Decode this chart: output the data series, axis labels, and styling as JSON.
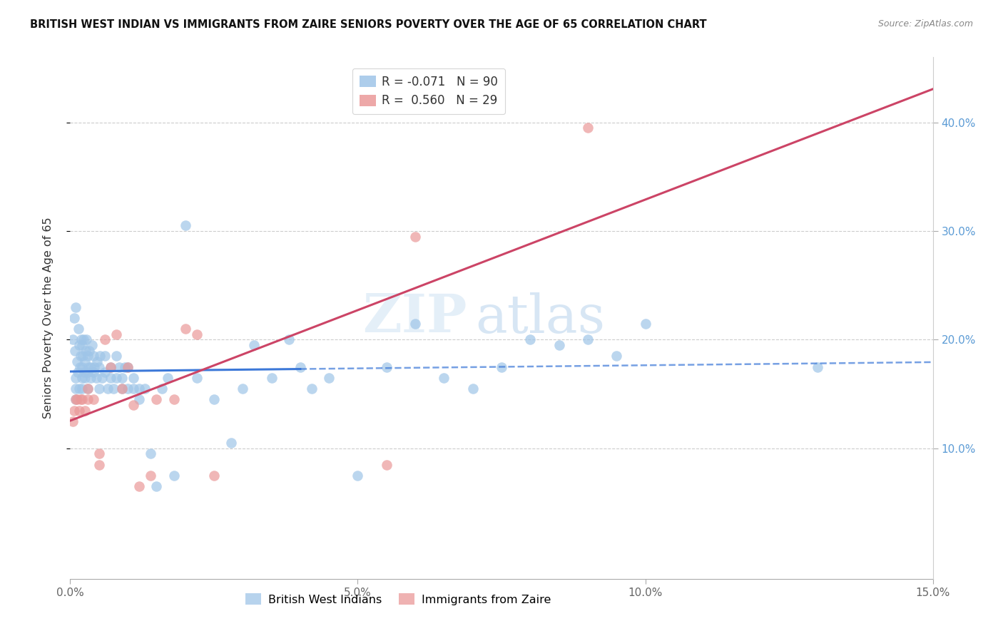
{
  "title": "BRITISH WEST INDIAN VS IMMIGRANTS FROM ZAIRE SENIORS POVERTY OVER THE AGE OF 65 CORRELATION CHART",
  "source": "Source: ZipAtlas.com",
  "ylabel": "Seniors Poverty Over the Age of 65",
  "xlim": [
    0.0,
    0.15
  ],
  "ylim": [
    -0.02,
    0.46
  ],
  "yticks": [
    0.1,
    0.2,
    0.3,
    0.4
  ],
  "xticks": [
    0.0,
    0.05,
    0.1,
    0.15
  ],
  "legend_labels": [
    "British West Indians",
    "Immigrants from Zaire"
  ],
  "series1_label": "R = -0.071",
  "series1_n": "N = 90",
  "series2_label": "R =  0.560",
  "series2_n": "N = 29",
  "blue_color": "#9fc5e8",
  "pink_color": "#ea9999",
  "blue_line_color": "#3c78d8",
  "pink_line_color": "#cc4466",
  "watermark_zip": "ZIP",
  "watermark_atlas": "atlas",
  "blue_x": [
    0.0005,
    0.0007,
    0.0008,
    0.0009,
    0.001,
    0.001,
    0.001,
    0.0012,
    0.0013,
    0.0014,
    0.0015,
    0.0016,
    0.0017,
    0.0018,
    0.0019,
    0.002,
    0.002,
    0.002,
    0.002,
    0.0022,
    0.0023,
    0.0024,
    0.0025,
    0.0026,
    0.0027,
    0.0028,
    0.003,
    0.003,
    0.003,
    0.0032,
    0.0033,
    0.0035,
    0.0036,
    0.0038,
    0.004,
    0.004,
    0.0042,
    0.0045,
    0.0047,
    0.005,
    0.005,
    0.0052,
    0.0055,
    0.006,
    0.006,
    0.0065,
    0.007,
    0.007,
    0.0075,
    0.008,
    0.008,
    0.0085,
    0.009,
    0.009,
    0.0095,
    0.01,
    0.01,
    0.011,
    0.011,
    0.012,
    0.012,
    0.013,
    0.014,
    0.015,
    0.016,
    0.017,
    0.018,
    0.02,
    0.022,
    0.025,
    0.028,
    0.03,
    0.032,
    0.035,
    0.038,
    0.04,
    0.042,
    0.045,
    0.05,
    0.055,
    0.06,
    0.065,
    0.07,
    0.075,
    0.08,
    0.085,
    0.09,
    0.095,
    0.1,
    0.13
  ],
  "blue_y": [
    0.2,
    0.22,
    0.19,
    0.23,
    0.145,
    0.155,
    0.165,
    0.18,
    0.17,
    0.21,
    0.155,
    0.195,
    0.175,
    0.185,
    0.2,
    0.155,
    0.165,
    0.175,
    0.195,
    0.185,
    0.2,
    0.17,
    0.165,
    0.18,
    0.19,
    0.2,
    0.155,
    0.17,
    0.185,
    0.175,
    0.19,
    0.165,
    0.175,
    0.195,
    0.17,
    0.185,
    0.175,
    0.165,
    0.18,
    0.155,
    0.175,
    0.185,
    0.165,
    0.17,
    0.185,
    0.155,
    0.165,
    0.175,
    0.155,
    0.165,
    0.185,
    0.175,
    0.155,
    0.165,
    0.175,
    0.155,
    0.175,
    0.155,
    0.165,
    0.155,
    0.145,
    0.155,
    0.095,
    0.065,
    0.155,
    0.165,
    0.075,
    0.305,
    0.165,
    0.145,
    0.105,
    0.155,
    0.195,
    0.165,
    0.2,
    0.175,
    0.155,
    0.165,
    0.075,
    0.175,
    0.215,
    0.165,
    0.155,
    0.175,
    0.2,
    0.195,
    0.2,
    0.185,
    0.215,
    0.175
  ],
  "pink_x": [
    0.0005,
    0.0007,
    0.001,
    0.0012,
    0.0015,
    0.0018,
    0.002,
    0.0025,
    0.003,
    0.003,
    0.004,
    0.005,
    0.005,
    0.006,
    0.007,
    0.008,
    0.009,
    0.01,
    0.011,
    0.012,
    0.014,
    0.015,
    0.018,
    0.02,
    0.022,
    0.025,
    0.055,
    0.06,
    0.09
  ],
  "pink_y": [
    0.125,
    0.135,
    0.145,
    0.145,
    0.135,
    0.145,
    0.145,
    0.135,
    0.145,
    0.155,
    0.145,
    0.085,
    0.095,
    0.2,
    0.175,
    0.205,
    0.155,
    0.175,
    0.14,
    0.065,
    0.075,
    0.145,
    0.145,
    0.21,
    0.205,
    0.075,
    0.085,
    0.295,
    0.395
  ]
}
